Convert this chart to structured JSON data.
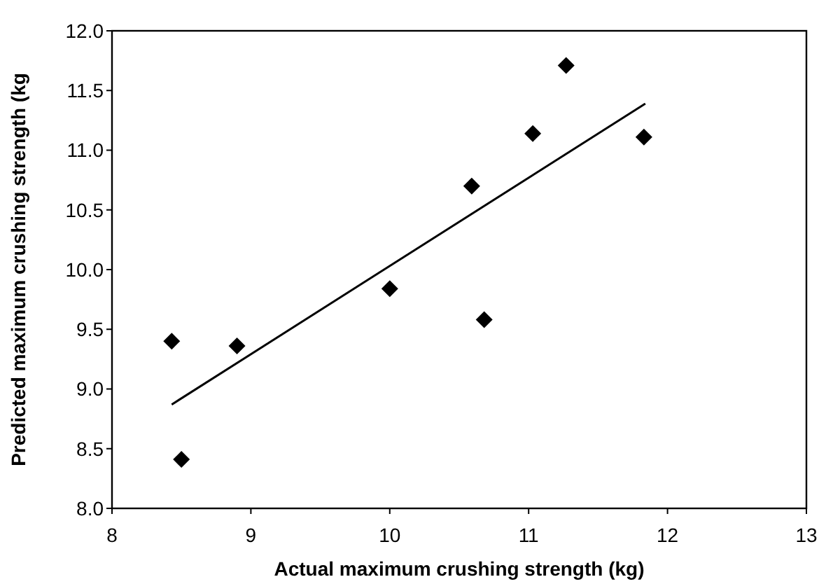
{
  "chart_data": {
    "type": "scatter",
    "xlabel": "Actual maximum crushing strength (kg)",
    "ylabel": "Predicted maximum crushing strength (kg",
    "xlim": [
      8,
      13
    ],
    "ylim": [
      8,
      12
    ],
    "xticks": [
      8,
      9,
      10,
      11,
      12,
      13
    ],
    "yticks": [
      {
        "value": 8,
        "label": "8.0"
      },
      {
        "value": 8.5,
        "label": "8.5"
      },
      {
        "value": 9,
        "label": "9.0"
      },
      {
        "value": 9.5,
        "label": "9.5"
      },
      {
        "value": 10,
        "label": "10.0"
      },
      {
        "value": 10.5,
        "label": "10.5"
      },
      {
        "value": 11,
        "label": "11.0"
      },
      {
        "value": 11.5,
        "label": "11.5"
      },
      {
        "value": 12,
        "label": "12.0"
      }
    ],
    "marker": "diamond",
    "grid": false,
    "series": [
      {
        "color": "#000000",
        "x": [
          8.43,
          8.5,
          8.9,
          10.0,
          10.59,
          10.68,
          11.03,
          11.27,
          11.83
        ],
        "values": [
          9.4,
          8.41,
          9.36,
          9.84,
          10.7,
          9.58,
          11.14,
          11.71,
          11.11
        ]
      },
      {
        "type": "line",
        "color": "#000000",
        "marker": "none",
        "x": [
          8.43,
          11.84
        ],
        "values": [
          8.87,
          11.39
        ]
      }
    ]
  }
}
